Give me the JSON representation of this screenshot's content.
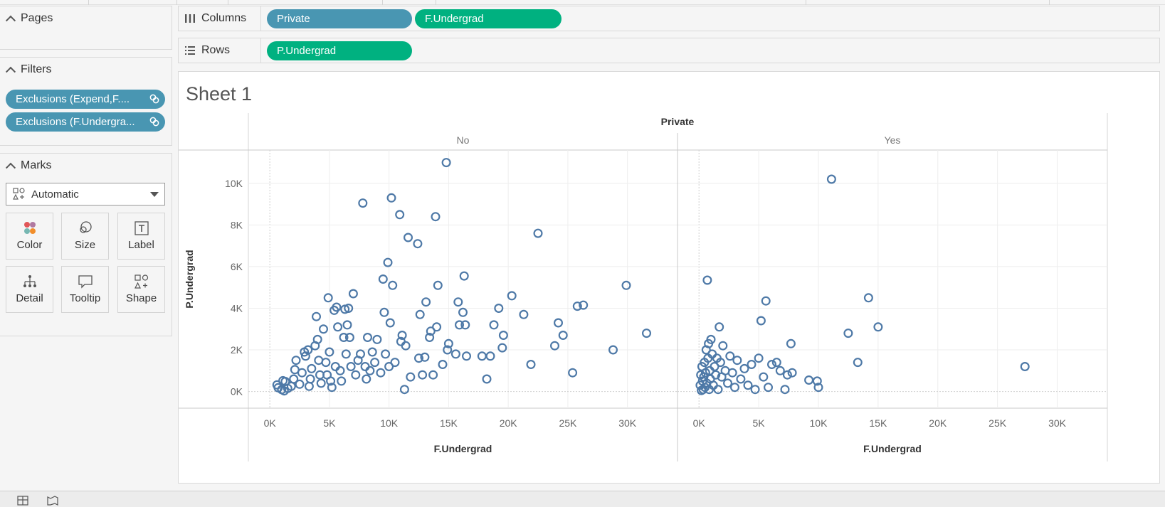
{
  "sidebar": {
    "pages": {
      "title": "Pages"
    },
    "filters": {
      "title": "Filters",
      "items": [
        {
          "label": "Exclusions (Expend,F...."
        },
        {
          "label": "Exclusions (F.Undergra..."
        }
      ]
    },
    "marks": {
      "title": "Marks",
      "type": "Automatic",
      "buttons": [
        {
          "label": "Color",
          "icon": "color-icon"
        },
        {
          "label": "Size",
          "icon": "size-icon"
        },
        {
          "label": "Label",
          "icon": "label-icon"
        },
        {
          "label": "Detail",
          "icon": "detail-icon"
        },
        {
          "label": "Tooltip",
          "icon": "tooltip-icon"
        },
        {
          "label": "Shape",
          "icon": "shape-icon"
        }
      ]
    }
  },
  "shelves": {
    "columns": {
      "label": "Columns",
      "pills": [
        "Private",
        "F.Undergrad"
      ]
    },
    "rows": {
      "label": "Rows",
      "pills": [
        "P.Undergrad"
      ]
    }
  },
  "colors": {
    "dimension": "#4996b2",
    "measure": "#00b180",
    "mark": "#4e79a7"
  },
  "sheet": {
    "title": "Sheet 1"
  },
  "chart_data": {
    "type": "scatter",
    "header": "Private",
    "panes": [
      {
        "label": "No",
        "points": [
          [
            600,
            320
          ],
          [
            700,
            180
          ],
          [
            1000,
            90
          ],
          [
            1200,
            30
          ],
          [
            1100,
            520
          ],
          [
            1300,
            480
          ],
          [
            1500,
            150
          ],
          [
            1800,
            250
          ],
          [
            2000,
            600
          ],
          [
            2100,
            1050
          ],
          [
            2200,
            1500
          ],
          [
            2500,
            350
          ],
          [
            2700,
            900
          ],
          [
            2900,
            1900
          ],
          [
            3000,
            1700
          ],
          [
            3200,
            2000
          ],
          [
            3300,
            250
          ],
          [
            3400,
            600
          ],
          [
            3500,
            1100
          ],
          [
            3800,
            2200
          ],
          [
            3900,
            3600
          ],
          [
            4000,
            2500
          ],
          [
            4100,
            1500
          ],
          [
            4200,
            800
          ],
          [
            4300,
            400
          ],
          [
            4500,
            3000
          ],
          [
            4700,
            1400
          ],
          [
            4800,
            800
          ],
          [
            4900,
            4500
          ],
          [
            5000,
            1900
          ],
          [
            5100,
            500
          ],
          [
            5200,
            200
          ],
          [
            5400,
            3900
          ],
          [
            5500,
            1200
          ],
          [
            5600,
            4050
          ],
          [
            5700,
            3100
          ],
          [
            5900,
            1000
          ],
          [
            6000,
            500
          ],
          [
            6200,
            2600
          ],
          [
            6300,
            3950
          ],
          [
            6400,
            1800
          ],
          [
            6500,
            3200
          ],
          [
            6600,
            4000
          ],
          [
            6700,
            2600
          ],
          [
            6800,
            1200
          ],
          [
            7000,
            4700
          ],
          [
            7200,
            800
          ],
          [
            7400,
            1500
          ],
          [
            7600,
            1800
          ],
          [
            7800,
            9050
          ],
          [
            8000,
            1200
          ],
          [
            8100,
            600
          ],
          [
            8200,
            2600
          ],
          [
            8400,
            1000
          ],
          [
            8600,
            1900
          ],
          [
            8800,
            1400
          ],
          [
            9000,
            2500
          ],
          [
            9300,
            900
          ],
          [
            9500,
            5400
          ],
          [
            9600,
            3800
          ],
          [
            9700,
            1800
          ],
          [
            9900,
            6200
          ],
          [
            10000,
            1200
          ],
          [
            10100,
            3300
          ],
          [
            10200,
            9300
          ],
          [
            10300,
            5100
          ],
          [
            10500,
            1400
          ],
          [
            10900,
            8500
          ],
          [
            11000,
            2400
          ],
          [
            11100,
            2700
          ],
          [
            11300,
            100
          ],
          [
            11400,
            2200
          ],
          [
            11600,
            7400
          ],
          [
            11800,
            700
          ],
          [
            12400,
            7100
          ],
          [
            12500,
            1600
          ],
          [
            12600,
            3700
          ],
          [
            12800,
            800
          ],
          [
            13000,
            1650
          ],
          [
            13100,
            4300
          ],
          [
            13400,
            2600
          ],
          [
            13500,
            2900
          ],
          [
            13700,
            800
          ],
          [
            13900,
            8400
          ],
          [
            14000,
            3100
          ],
          [
            14100,
            5100
          ],
          [
            14500,
            1300
          ],
          [
            14800,
            11000
          ],
          [
            14900,
            2000
          ],
          [
            15000,
            2300
          ],
          [
            15600,
            1800
          ],
          [
            15800,
            4300
          ],
          [
            15900,
            3200
          ],
          [
            16200,
            3800
          ],
          [
            16300,
            5550
          ],
          [
            16400,
            3200
          ],
          [
            16500,
            1700
          ],
          [
            17800,
            1700
          ],
          [
            18200,
            600
          ],
          [
            18500,
            1700
          ],
          [
            18800,
            3200
          ],
          [
            19200,
            4000
          ],
          [
            19500,
            2100
          ],
          [
            19600,
            2700
          ],
          [
            20300,
            4600
          ],
          [
            21300,
            3700
          ],
          [
            21900,
            1300
          ],
          [
            22500,
            7600
          ],
          [
            23900,
            2200
          ],
          [
            24200,
            3300
          ],
          [
            24600,
            2700
          ],
          [
            25400,
            900
          ],
          [
            25800,
            4100
          ],
          [
            26300,
            4150
          ],
          [
            28800,
            2000
          ],
          [
            29900,
            5100
          ],
          [
            31600,
            2800
          ]
        ]
      },
      {
        "label": "Yes",
        "points": [
          [
            100,
            300
          ],
          [
            150,
            800
          ],
          [
            200,
            50
          ],
          [
            250,
            1200
          ],
          [
            300,
            500
          ],
          [
            350,
            100
          ],
          [
            400,
            700
          ],
          [
            450,
            1400
          ],
          [
            500,
            200
          ],
          [
            550,
            900
          ],
          [
            600,
            2000
          ],
          [
            650,
            400
          ],
          [
            700,
            5350
          ],
          [
            750,
            1600
          ],
          [
            800,
            2300
          ],
          [
            850,
            100
          ],
          [
            900,
            1000
          ],
          [
            950,
            600
          ],
          [
            1000,
            2500
          ],
          [
            1100,
            1800
          ],
          [
            1200,
            300
          ],
          [
            1300,
            1200
          ],
          [
            1400,
            800
          ],
          [
            1500,
            1600
          ],
          [
            1600,
            100
          ],
          [
            1700,
            3100
          ],
          [
            1800,
            1400
          ],
          [
            1900,
            700
          ],
          [
            2000,
            2200
          ],
          [
            2200,
            1000
          ],
          [
            2400,
            400
          ],
          [
            2600,
            1700
          ],
          [
            2800,
            900
          ],
          [
            3000,
            200
          ],
          [
            3200,
            1500
          ],
          [
            3500,
            600
          ],
          [
            3800,
            1100
          ],
          [
            4100,
            300
          ],
          [
            4400,
            1300
          ],
          [
            4700,
            100
          ],
          [
            5000,
            1600
          ],
          [
            5200,
            3400
          ],
          [
            5400,
            700
          ],
          [
            5600,
            4350
          ],
          [
            5800,
            200
          ],
          [
            6100,
            1300
          ],
          [
            6500,
            1400
          ],
          [
            6800,
            1000
          ],
          [
            7200,
            100
          ],
          [
            7400,
            800
          ],
          [
            7700,
            2300
          ],
          [
            7800,
            900
          ],
          [
            9200,
            550
          ],
          [
            9900,
            500
          ],
          [
            10000,
            200
          ],
          [
            11100,
            10200
          ],
          [
            12500,
            2800
          ],
          [
            13300,
            1400
          ],
          [
            14200,
            4500
          ],
          [
            15000,
            3100
          ],
          [
            27300,
            1200
          ]
        ]
      }
    ],
    "xlabel": "F.Undergrad",
    "ylabel": "P.Undergrad",
    "xlim": [
      -1800,
      34200
    ],
    "ylim": [
      -800,
      11600
    ],
    "xticks": [
      0,
      5000,
      10000,
      15000,
      20000,
      25000,
      30000
    ],
    "xtick_labels": [
      "0K",
      "5K",
      "10K",
      "15K",
      "20K",
      "25K",
      "30K"
    ],
    "yticks": [
      0,
      2000,
      4000,
      6000,
      8000,
      10000
    ],
    "ytick_labels": [
      "0K",
      "2K",
      "4K",
      "6K",
      "8K",
      "10K"
    ],
    "grid": true,
    "marker": "open-circle"
  }
}
